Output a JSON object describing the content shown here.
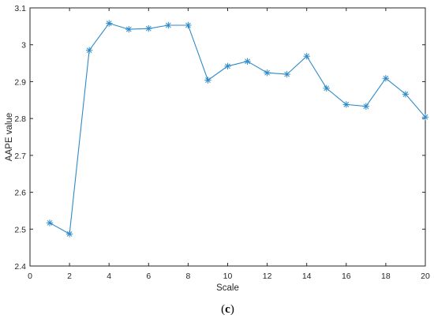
{
  "chart_data": {
    "type": "line",
    "title": "",
    "xlabel": "Scale",
    "ylabel": "AAPE value",
    "xlim": [
      0,
      20
    ],
    "ylim": [
      2.4,
      3.1
    ],
    "xticks": [
      0,
      2,
      4,
      6,
      8,
      10,
      12,
      14,
      16,
      18,
      20
    ],
    "xtick_labels": [
      "0",
      "2",
      "4",
      "6",
      "8",
      "10",
      "12",
      "14",
      "16",
      "18",
      "20"
    ],
    "yticks": [
      2.4,
      2.5,
      2.6,
      2.7,
      2.8,
      2.9,
      3.0,
      3.1
    ],
    "ytick_labels": [
      "2.4",
      "2.5",
      "2.6",
      "2.7",
      "2.8",
      "2.9",
      "3",
      "3.1"
    ],
    "grid": false,
    "marker": "asterisk",
    "line_color": "#2e8ac8",
    "series": [
      {
        "x": [
          1,
          2,
          3,
          4,
          5,
          6,
          7,
          8,
          9,
          10,
          11,
          12,
          13,
          14,
          15,
          16,
          17,
          18,
          19,
          20
        ],
        "values": [
          2.517,
          2.487,
          2.985,
          3.058,
          3.042,
          3.044,
          3.053,
          3.053,
          2.904,
          2.942,
          2.955,
          2.924,
          2.92,
          2.969,
          2.882,
          2.838,
          2.833,
          2.909,
          2.866,
          2.804
        ]
      }
    ]
  },
  "caption": {
    "open": "(",
    "letter": "c",
    "close": ")"
  }
}
